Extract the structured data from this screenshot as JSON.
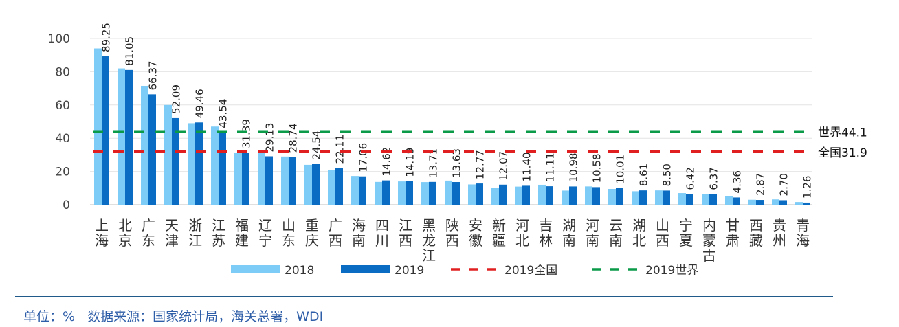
{
  "chart_data": {
    "type": "bar",
    "categories": [
      "上海",
      "北京",
      "广东",
      "天津",
      "浙江",
      "江苏",
      "福建",
      "辽宁",
      "山东",
      "重庆",
      "广西",
      "海南",
      "四川",
      "江西",
      "黑龙江",
      "陕西",
      "安徽",
      "新疆",
      "河北",
      "吉林",
      "湖南",
      "河南",
      "云南",
      "湖北",
      "山西",
      "宁夏",
      "内蒙古",
      "甘肃",
      "西藏",
      "贵州",
      "青海"
    ],
    "series": [
      {
        "name": "2018",
        "color": "#7dcbf7",
        "values": [
          94,
          82,
          71.5,
          60,
          49,
          47,
          31.4,
          32,
          29,
          24,
          20.7,
          17.3,
          13.7,
          14,
          13.6,
          14.5,
          12.2,
          10.3,
          10.9,
          12,
          8.5,
          11,
          9.5,
          8.1,
          8.6,
          7,
          6.4,
          5,
          3,
          3.2,
          1.6
        ]
      },
      {
        "name": "2019",
        "color": "#0a6cc2",
        "values": [
          89.25,
          81.05,
          66.37,
          52.09,
          49.46,
          43.54,
          31.39,
          29.13,
          28.74,
          24.54,
          22.11,
          17.06,
          14.62,
          14.19,
          13.71,
          13.63,
          12.77,
          12.07,
          11.4,
          11.11,
          10.98,
          10.58,
          10.01,
          8.61,
          8.5,
          6.42,
          6.37,
          4.36,
          2.87,
          2.7,
          1.26
        ],
        "data_labels": [
          "89.25",
          "81.05",
          "66.37",
          "52.09",
          "49.46",
          "43.54",
          "31.39",
          "29.13",
          "28.74",
          "24.54",
          "22.11",
          "17.06",
          "14.62",
          "14.19",
          "13.71",
          "13.63",
          "12.77",
          "12.07",
          "11.40",
          "11.11",
          "10.98",
          "10.58",
          "10.01",
          "8.61",
          "8.50",
          "6.42",
          "6.37",
          "4.36",
          "2.87",
          "2.70",
          "1.26"
        ]
      }
    ],
    "reference_lines": [
      {
        "name": "2019全国",
        "value": 31.9,
        "label": "全国31.9",
        "color": "#e02020",
        "style": "dashed"
      },
      {
        "name": "2019世界",
        "value": 44.1,
        "label": "世界44.1",
        "color": "#0a9a48",
        "style": "dashed"
      }
    ],
    "ylim": [
      0,
      100
    ],
    "yticks": [
      "0",
      "20",
      "40",
      "60",
      "80",
      "100"
    ],
    "grid": true,
    "legend_position": "bottom",
    "title": "",
    "xlabel": "",
    "ylabel": ""
  },
  "footer": "单位：%   数据来源：国家统计局，海关总署，WDI"
}
